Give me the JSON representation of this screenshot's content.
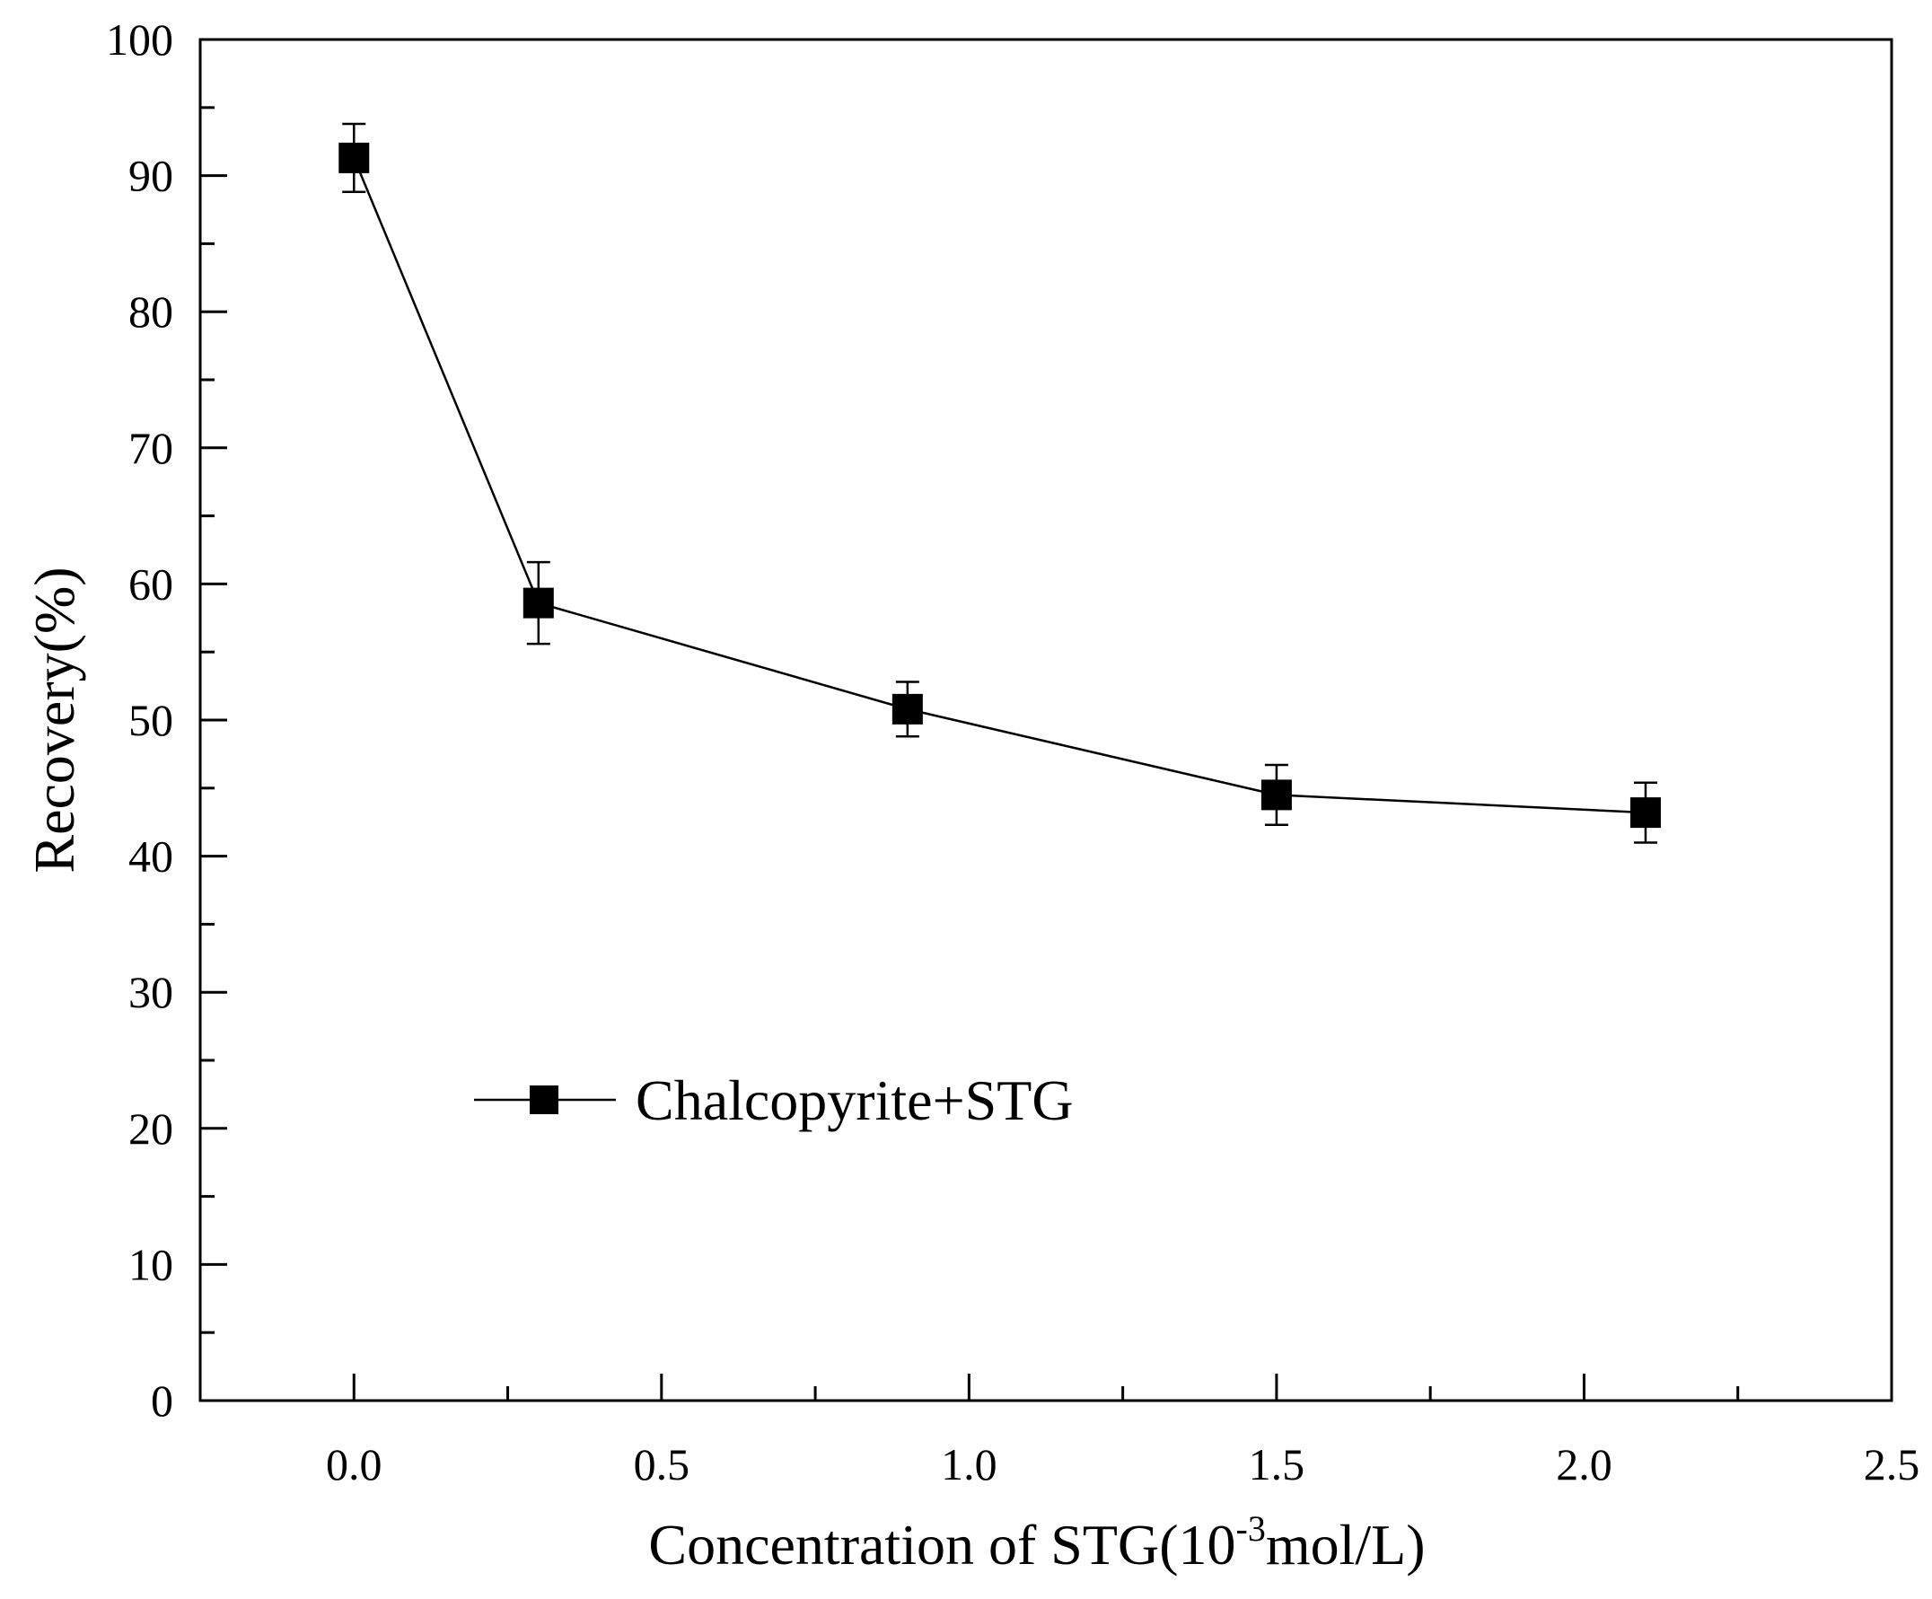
{
  "chart_data": {
    "type": "line",
    "title": "",
    "xlabel_prefix": "Concentration of STG(10",
    "xlabel_sup": "-3",
    "xlabel_suffix": "mol/L)",
    "ylabel": "Recovery(%)",
    "xlim": [
      -0.25,
      2.5
    ],
    "ylim": [
      0,
      100
    ],
    "x_ticks": [
      0.0,
      0.5,
      1.0,
      1.5,
      2.0,
      2.5
    ],
    "x_tick_labels": [
      "0.0",
      "0.5",
      "1.0",
      "1.5",
      "2.0",
      "2.5"
    ],
    "x_minor_ticks": [
      -0.25,
      0.25,
      0.75,
      1.25,
      1.75,
      2.25
    ],
    "y_ticks": [
      0,
      10,
      20,
      30,
      40,
      50,
      60,
      70,
      80,
      90,
      100
    ],
    "y_tick_labels": [
      "0",
      "10",
      "20",
      "30",
      "40",
      "50",
      "60",
      "70",
      "80",
      "90",
      "100"
    ],
    "y_minor_ticks": [
      5,
      15,
      25,
      35,
      45,
      55,
      65,
      75,
      85,
      95
    ],
    "grid": false,
    "legend_position": "middle-left",
    "series": [
      {
        "name": "Chalcopyrite+STG",
        "marker": "square",
        "color": "#000000",
        "x": [
          0.0,
          0.3,
          0.9,
          1.5,
          2.1
        ],
        "y": [
          91.3,
          58.6,
          50.8,
          44.5,
          43.2
        ],
        "error": [
          2.5,
          3.0,
          2.0,
          2.2,
          2.2
        ]
      }
    ]
  }
}
